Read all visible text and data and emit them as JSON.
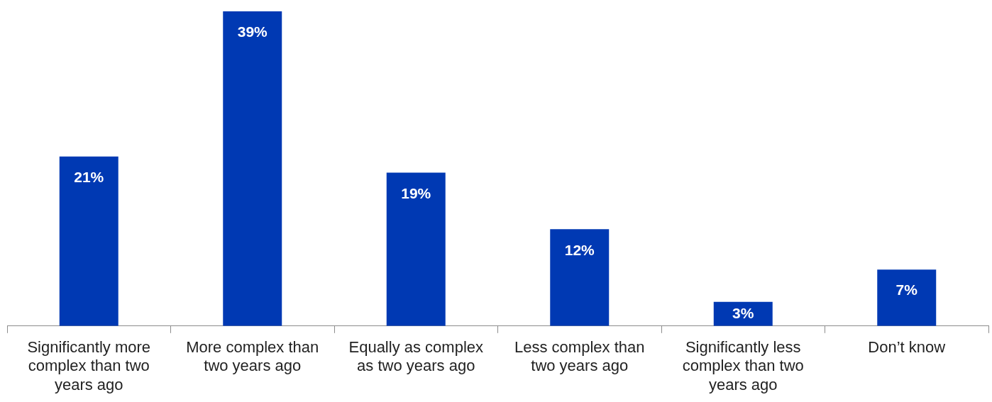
{
  "chart_data": {
    "type": "bar",
    "categories": [
      "Significantly more complex than two years ago",
      "More complex than two years ago",
      "Equally as complex as two years ago",
      "Less complex than two years ago",
      "Significantly less complex than two years ago",
      "Don’t know"
    ],
    "values": [
      21,
      39,
      19,
      12,
      3,
      7
    ],
    "value_labels": [
      "21%",
      "39%",
      "19%",
      "12%",
      "3%",
      "7%"
    ],
    "color": "#0039b3"
  }
}
